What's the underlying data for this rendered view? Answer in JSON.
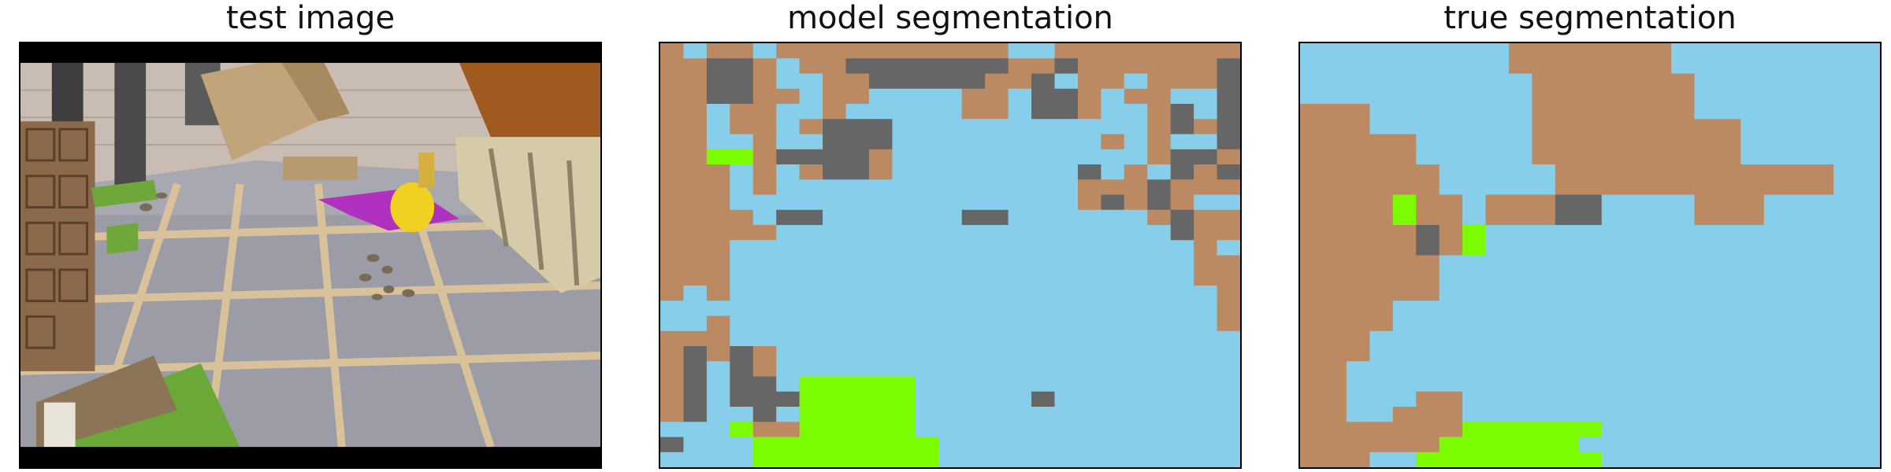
{
  "panels": [
    {
      "title": "test image"
    },
    {
      "title": "model segmentation"
    },
    {
      "title": "true segmentation"
    }
  ],
  "palette": {
    "0": "#87ceeb",
    "1": "#bc8a62",
    "2": "#666666",
    "3": "#7cfc00"
  },
  "classes": [
    "sky-blue",
    "brown",
    "gray",
    "green"
  ],
  "model_mask": [
    "1011011111111110011111111",
    "1122101122222221121111112",
    "1122100112222211201101112",
    "1122110110000110221011002",
    "1101100100000110221001202",
    "1101101222000000000001212",
    "1100100222000000000101002",
    "1133122221000000000001221",
    "1110101221000000002010212",
    "1110100000000000001112111",
    "1110000000000000001212100",
    "1111022000000220000001211",
    "1111100000000000000000211",
    "1110000000000000000000010",
    "1110000000000000000000011",
    "1110000000000000000000011",
    "1010000000000000000000001",
    "0000000000000000000000001",
    "0010000000000000000000001",
    "1110000000000000000000000",
    "1212100000000000000000000",
    "1202100000000000000000000",
    "1202203333300000000000000",
    "1202223333300000200000000",
    "1200203333300000000000000",
    "0003113333300000000000000",
    "2000333333330000000000000",
    "0000333333330000000000000"
  ],
  "true_mask": [
    "0000000001111111000000000",
    "0000000001111111000000000",
    "0000000000111111100000000",
    "0000000000111111100000000",
    "1110000000111111100000000",
    "1110000000111111111000000",
    "1111100000111111111000000",
    "1111100000111111111000000",
    "1111110000011111111111100",
    "1111110000011111111111100",
    "1111311011122000011100000",
    "1111311011122000011100000",
    "1111121300000000000000000",
    "1111121300000000000000000",
    "1111110000000000000000000",
    "1111110000000000000000000",
    "1111110000000000000000000",
    "1111000000000000000000000",
    "1111000000000000000000000",
    "1110000000000000000000000",
    "1110000000000000000000000",
    "1100000000000000000000000",
    "1100000000000000000000000",
    "1100011000000000000000000",
    "1100111000000000000000000",
    "1111111333333000000000000",
    "1111113333330000000000000",
    "1110033333333000000000000"
  ]
}
